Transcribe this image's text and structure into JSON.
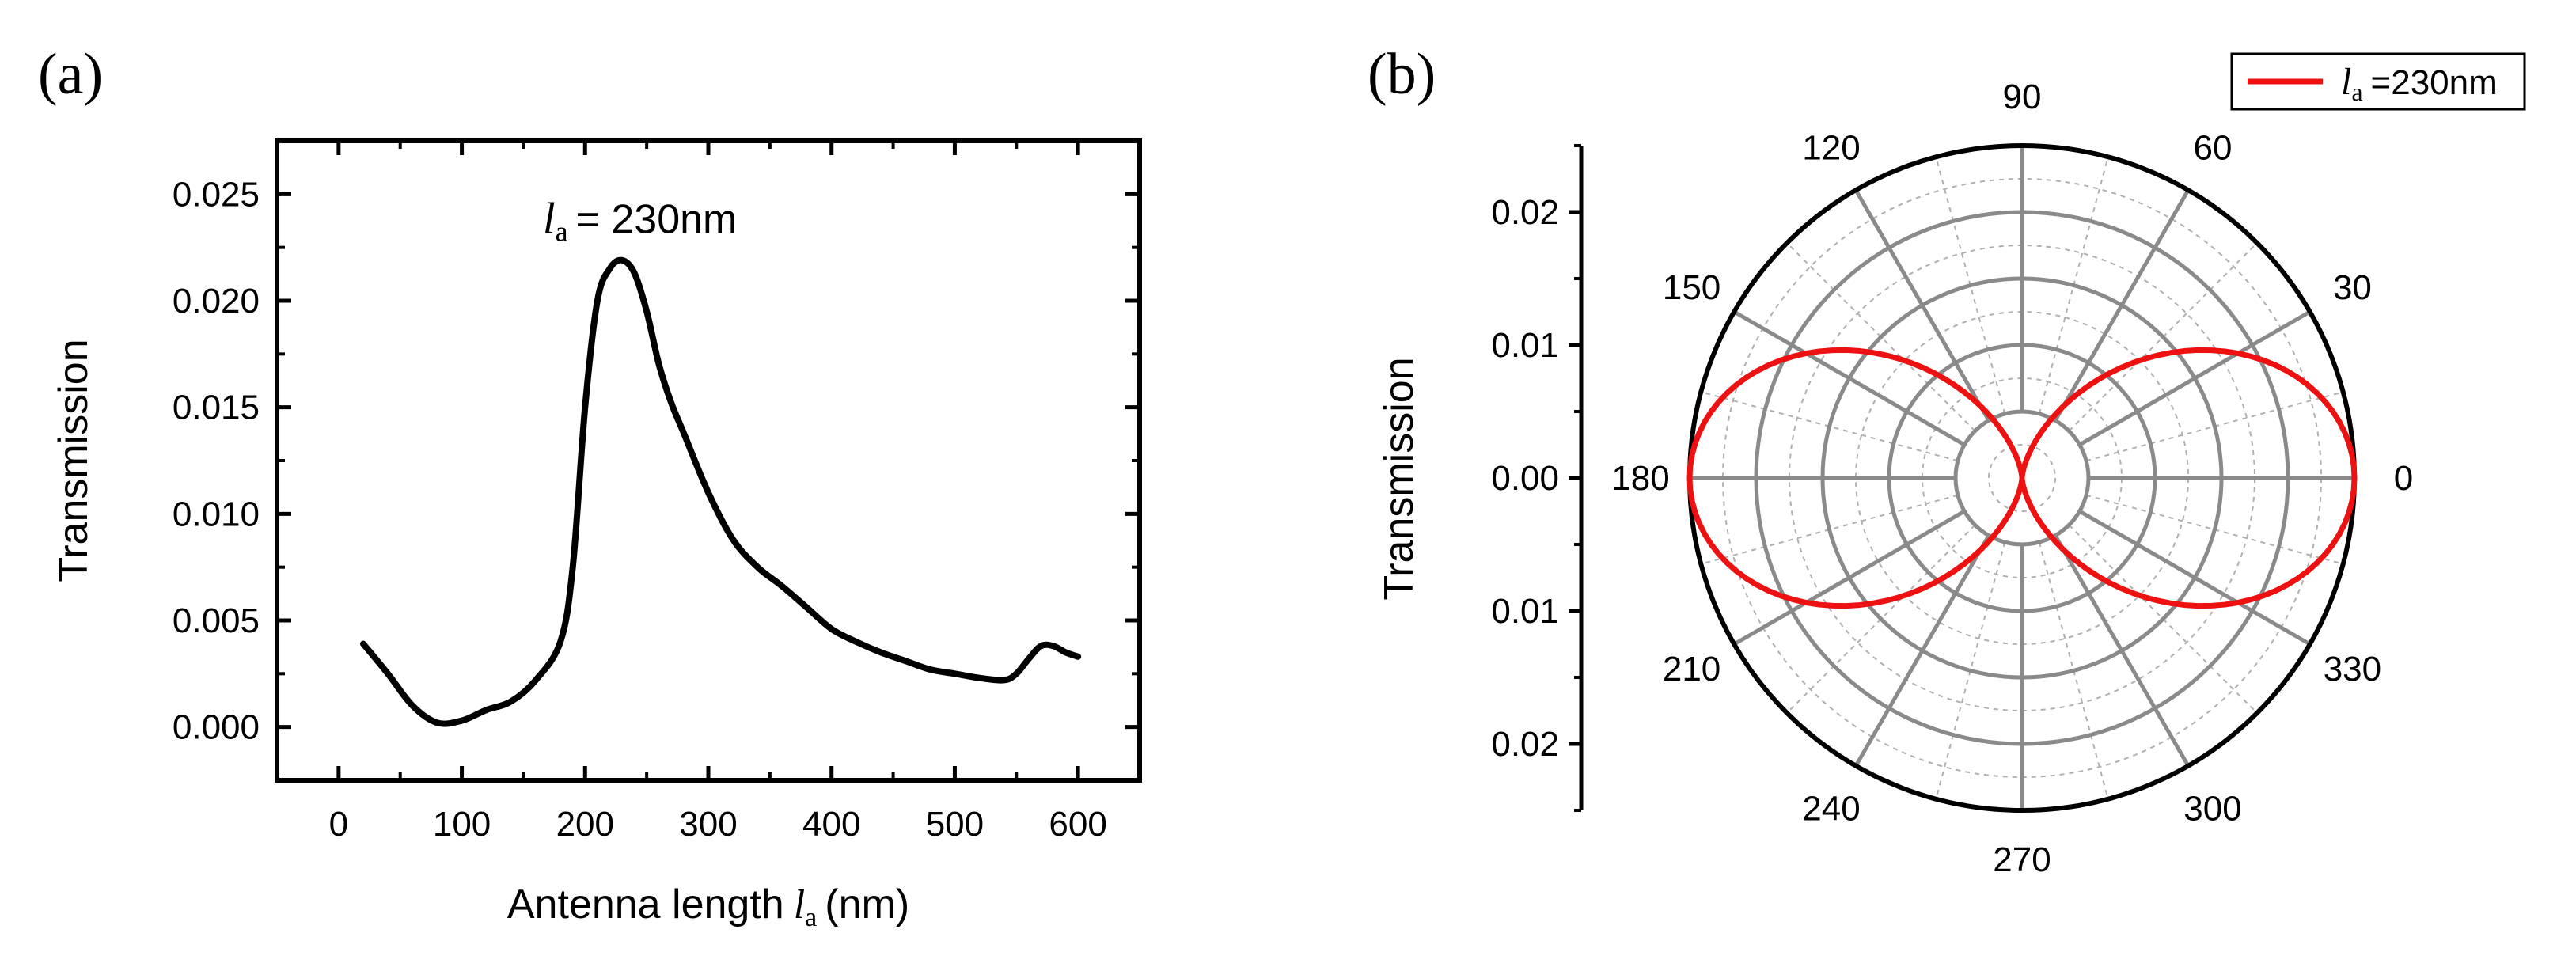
{
  "figure": {
    "panel_a_label": "(a)",
    "panel_b_label": "(b)"
  },
  "chart_data": [
    {
      "type": "line",
      "panel": "a",
      "title": "",
      "xlabel_prefix": "Antenna length",
      "xlabel_symbol": "l",
      "xlabel_subscript": "a",
      "xlabel_unit": "(nm)",
      "ylabel": "Transmission",
      "xlim": [
        -50,
        650
      ],
      "ylim": [
        -0.0025,
        0.0275
      ],
      "x_ticks": [
        0,
        100,
        200,
        300,
        400,
        500,
        600
      ],
      "y_ticks": [
        0.0,
        0.005,
        0.01,
        0.015,
        0.02,
        0.025
      ],
      "y_tick_labels": [
        "0.000",
        "0.005",
        "0.010",
        "0.015",
        "0.020",
        "0.025"
      ],
      "annotation": {
        "symbol": "l",
        "subscript": "a",
        "text": "= 230nm",
        "x": 230,
        "y": 0.0225
      },
      "series": [
        {
          "name": "Transmission",
          "color": "#000000",
          "x": [
            20,
            40,
            60,
            80,
            100,
            120,
            140,
            160,
            180,
            190,
            200,
            210,
            220,
            230,
            240,
            250,
            260,
            270,
            280,
            300,
            320,
            340,
            360,
            380,
            400,
            420,
            440,
            460,
            480,
            500,
            520,
            540,
            550,
            560,
            570,
            580,
            590,
            600
          ],
          "y": [
            0.0039,
            0.0025,
            0.001,
            0.0002,
            0.0003,
            0.0008,
            0.0012,
            0.0022,
            0.004,
            0.0075,
            0.015,
            0.02,
            0.0215,
            0.0219,
            0.0213,
            0.0195,
            0.017,
            0.0152,
            0.0138,
            0.011,
            0.0088,
            0.0075,
            0.0066,
            0.0056,
            0.0046,
            0.004,
            0.0035,
            0.0031,
            0.0027,
            0.0025,
            0.0023,
            0.0022,
            0.0025,
            0.0032,
            0.0038,
            0.0038,
            0.0035,
            0.0033
          ]
        }
      ]
    },
    {
      "type": "polar",
      "panel": "b",
      "title": "",
      "ylabel": "Transmission",
      "r_max": 0.025,
      "r_tick_labels": [
        "0.02",
        "0.01",
        "0.00",
        "0.01",
        "0.02"
      ],
      "angle_ticks": [
        0,
        30,
        60,
        90,
        120,
        150,
        180,
        210,
        240,
        270,
        300,
        330
      ],
      "angle_tick_labels": [
        "0",
        "30",
        "60",
        "90",
        "120",
        "150",
        "180",
        "210",
        "240",
        "270",
        "300",
        "330"
      ],
      "legend": {
        "symbol": "l",
        "subscript": "a",
        "text": "=230nm",
        "position": "top-right"
      },
      "series": [
        {
          "name": "la=230nm",
          "color": "#ee1111",
          "model": "r = r_max * cos^2(theta)",
          "peak_value": 0.025
        }
      ]
    }
  ]
}
